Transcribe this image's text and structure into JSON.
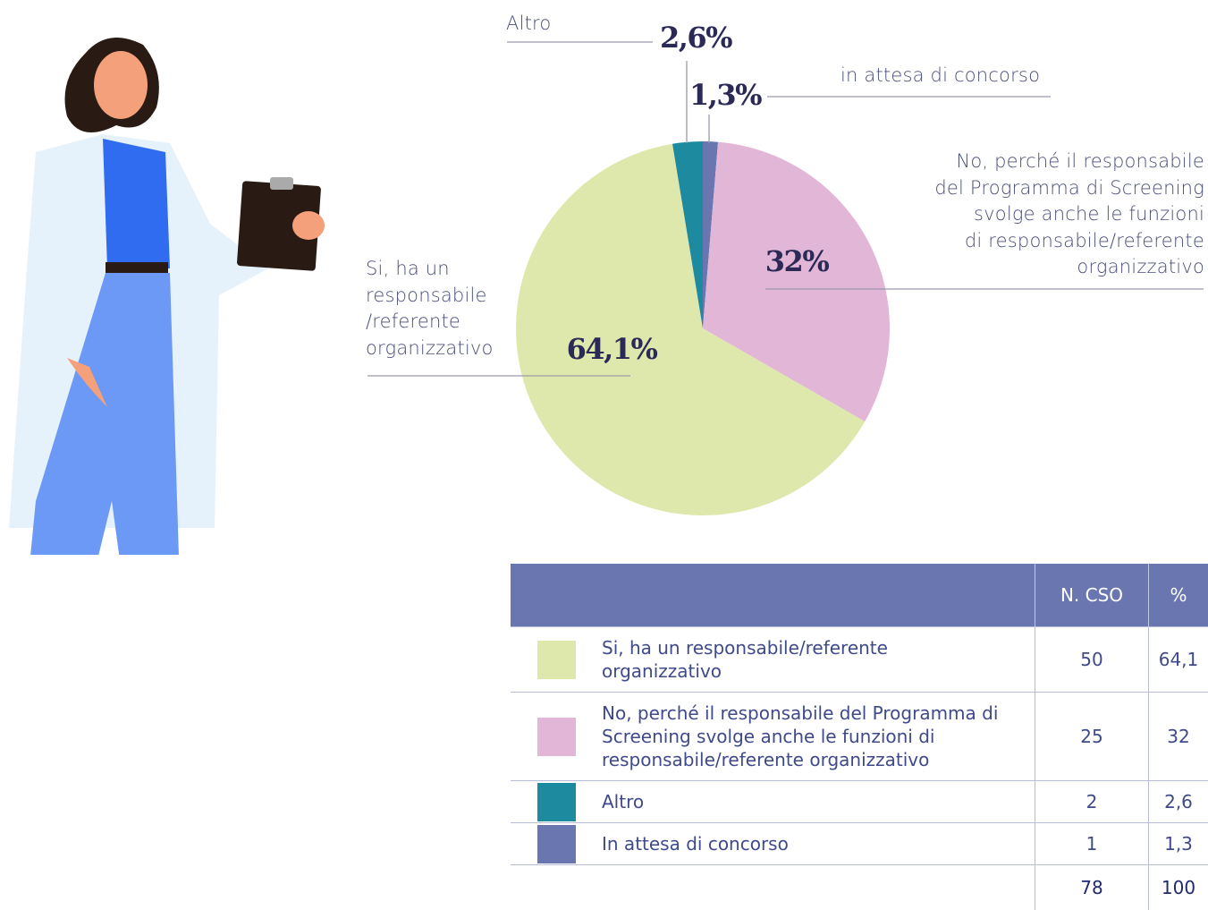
{
  "chart_data": {
    "type": "pie",
    "categories": [
      "in attesa di concorso",
      "No, perché il responsabile\ndel Programma di Screening\nsvolge anche le funzioni\ndi responsabile/referente\norganizzativo",
      "Si, ha un\nresponsabile\n/referente\norganizzativo",
      "Altro"
    ],
    "values": [
      1.3,
      32,
      64.1,
      2.6
    ],
    "value_labels": [
      "1,3%",
      "32%",
      "64,1%",
      "2,6%"
    ],
    "colors": [
      "#6a76b0",
      "#e2b6d7",
      "#dfe8ac",
      "#1e8aa0"
    ]
  },
  "table": {
    "header": [
      "N. CSO",
      "%"
    ],
    "rows": [
      {
        "color": "#dfe8ac",
        "label": "Si, ha un responsabile/referente organizzativo",
        "n": "50",
        "pct": "64,1"
      },
      {
        "color": "#e2b6d7",
        "label": "No, perché il responsabile del Programma di Screening svolge anche le funzioni di responsabile/referente organizzativo",
        "n": "25",
        "pct": "32"
      },
      {
        "color": "#1e8aa0",
        "label": "Altro",
        "n": "2",
        "pct": "2,6"
      },
      {
        "color": "#6a76b0",
        "label": "In attesa di concorso",
        "n": "1",
        "pct": "1,3"
      }
    ],
    "total": {
      "n": "78",
      "pct": "100"
    }
  }
}
